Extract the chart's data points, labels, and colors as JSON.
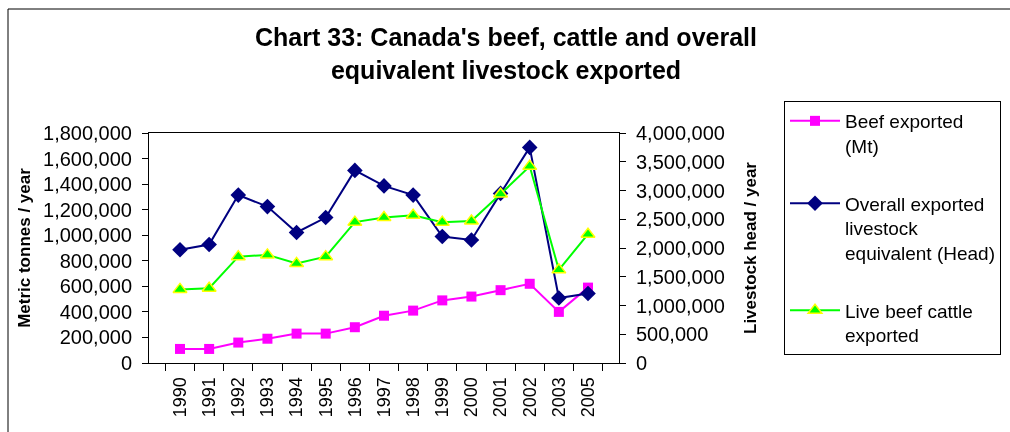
{
  "chart_data": {
    "type": "line",
    "title": "Chart 33: Canada's beef, cattle and overall equivalent livestock exported",
    "ylabel": "Metric tonnes / year",
    "y2label": "Livestock head / year",
    "categories": [
      "1990",
      "1991",
      "1992",
      "1993",
      "1994",
      "1995",
      "1996",
      "1997",
      "1998",
      "1999",
      "2000",
      "2001",
      "2002",
      "2003",
      "2005"
    ],
    "ylim": [
      0,
      1800000
    ],
    "yticks": [
      0,
      {
        "value": 200000,
        "label": "200,000"
      },
      {
        "value": 400000,
        "label": "400,000"
      },
      {
        "value": 600000,
        "label": "600,000"
      },
      {
        "value": 800000,
        "label": "800,000"
      },
      {
        "value": 1000000,
        "label": "1,000,000"
      },
      {
        "value": 1200000,
        "label": "1,200,000"
      },
      {
        "value": 1400000,
        "label": "1,400,000"
      },
      {
        "value": 1600000,
        "label": "1,600,000"
      },
      {
        "value": 1800000,
        "label": "1,800,000"
      }
    ],
    "y2lim": [
      0,
      4000000
    ],
    "y2ticks": [
      0,
      {
        "value": 500000,
        "label": "500,000"
      },
      {
        "value": 1000000,
        "label": "1,000,000"
      },
      {
        "value": 1500000,
        "label": "1,500,000"
      },
      {
        "value": 2000000,
        "label": "2,000,000"
      },
      {
        "value": 2500000,
        "label": "2,500,000"
      },
      {
        "value": 3000000,
        "label": "3,000,000"
      },
      {
        "value": 3500000,
        "label": "3,500,000"
      },
      {
        "value": 4000000,
        "label": "4,000,000"
      }
    ],
    "legend": "right",
    "line_style": "solid",
    "series": [
      {
        "name": "Beef exported (Mt)",
        "color": "#ff00ff",
        "marker": "square",
        "values": [
          110000,
          110000,
          160000,
          190000,
          230000,
          230000,
          280000,
          370000,
          410000,
          490000,
          520000,
          570000,
          620000,
          400000,
          590000
        ]
      },
      {
        "name": "Overall exported livestock equivalent (Head)",
        "color": "#000080",
        "marker": "diamond",
        "axis": "y2",
        "values": [
          1970000,
          2060000,
          2920000,
          2720000,
          2270000,
          2530000,
          3350000,
          3080000,
          2920000,
          2200000,
          2140000,
          2950000,
          3750000,
          1130000,
          1210000
        ]
      },
      {
        "name": "Live beef cattle exported",
        "color": "#00ff00",
        "marker": "triangle",
        "axis": "y2",
        "values": [
          1280000,
          1300000,
          1850000,
          1880000,
          1730000,
          1850000,
          2450000,
          2530000,
          2570000,
          2450000,
          2470000,
          2940000,
          3420000,
          1620000,
          2240000
        ]
      }
    ]
  }
}
